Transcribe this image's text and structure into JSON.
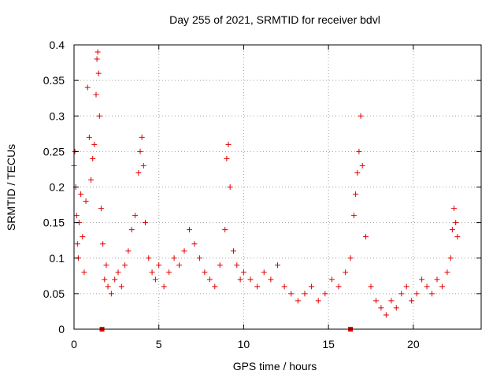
{
  "chart_data": {
    "type": "scatter",
    "title": "Day 255 of 2021, SRMTID for receiver bdvl",
    "xlabel": "GPS time / hours",
    "ylabel": "SRMTID / TECUs",
    "xlim": [
      0,
      24
    ],
    "ylim": [
      0,
      0.4
    ],
    "x_ticks": [
      0,
      5,
      10,
      15,
      20
    ],
    "x_tick_labels": [
      "0",
      "5",
      "10",
      "15",
      "20"
    ],
    "y_ticks": [
      0,
      0.05,
      0.1,
      0.15,
      0.2,
      0.25,
      0.3,
      0.35,
      0.4
    ],
    "y_tick_labels": [
      "0",
      "0.05",
      "0.1",
      "0.15",
      "0.2",
      "0.25",
      "0.3",
      "0.35",
      "0.4"
    ],
    "grid": true,
    "marker": "plus",
    "color": "#e00000",
    "series": [
      {
        "name": "SRMTID",
        "x": [
          0.0,
          0.05,
          0.1,
          0.15,
          0.2,
          0.25,
          0.3,
          0.4,
          0.5,
          0.6,
          0.7,
          0.8,
          0.9,
          1.0,
          1.1,
          1.2,
          1.3,
          1.35,
          1.4,
          1.45,
          1.5,
          1.6,
          1.7,
          1.8,
          1.9,
          2.0,
          2.2,
          2.4,
          2.6,
          2.8,
          3.0,
          3.2,
          3.4,
          3.6,
          3.8,
          3.9,
          4.0,
          4.1,
          4.2,
          4.4,
          4.6,
          4.8,
          5.0,
          5.3,
          5.6,
          5.9,
          6.2,
          6.5,
          6.8,
          7.1,
          7.4,
          7.7,
          8.0,
          8.3,
          8.6,
          8.9,
          9.0,
          9.1,
          9.2,
          9.4,
          9.6,
          9.8,
          10.0,
          10.4,
          10.8,
          11.2,
          11.6,
          12.0,
          12.4,
          12.8,
          13.2,
          13.6,
          14.0,
          14.4,
          14.8,
          15.2,
          15.6,
          16.0,
          16.3,
          16.5,
          16.6,
          16.7,
          16.8,
          16.9,
          17.0,
          17.2,
          17.5,
          17.8,
          18.1,
          18.4,
          18.7,
          19.0,
          19.3,
          19.6,
          19.9,
          20.2,
          20.5,
          20.8,
          21.1,
          21.4,
          21.7,
          22.0,
          22.2,
          22.3,
          22.4,
          22.5,
          22.6
        ],
        "y": [
          0.23,
          0.25,
          0.2,
          0.16,
          0.12,
          0.1,
          0.15,
          0.19,
          0.13,
          0.08,
          0.18,
          0.34,
          0.27,
          0.21,
          0.24,
          0.26,
          0.33,
          0.38,
          0.39,
          0.36,
          0.3,
          0.17,
          0.12,
          0.07,
          0.09,
          0.06,
          0.05,
          0.07,
          0.08,
          0.06,
          0.09,
          0.11,
          0.14,
          0.16,
          0.22,
          0.25,
          0.27,
          0.23,
          0.15,
          0.1,
          0.08,
          0.07,
          0.09,
          0.06,
          0.08,
          0.1,
          0.09,
          0.11,
          0.14,
          0.12,
          0.1,
          0.08,
          0.07,
          0.06,
          0.09,
          0.14,
          0.24,
          0.26,
          0.2,
          0.11,
          0.09,
          0.07,
          0.08,
          0.07,
          0.06,
          0.08,
          0.07,
          0.09,
          0.06,
          0.05,
          0.04,
          0.05,
          0.06,
          0.04,
          0.05,
          0.07,
          0.06,
          0.08,
          0.1,
          0.16,
          0.19,
          0.22,
          0.25,
          0.3,
          0.23,
          0.13,
          0.06,
          0.04,
          0.03,
          0.02,
          0.04,
          0.03,
          0.05,
          0.06,
          0.04,
          0.05,
          0.07,
          0.06,
          0.05,
          0.07,
          0.06,
          0.08,
          0.1,
          0.14,
          0.17,
          0.15,
          0.13
        ]
      }
    ],
    "markers_on_axis": [
      {
        "x": 1.65,
        "y": 0
      },
      {
        "x": 16.3,
        "y": 0
      }
    ]
  }
}
